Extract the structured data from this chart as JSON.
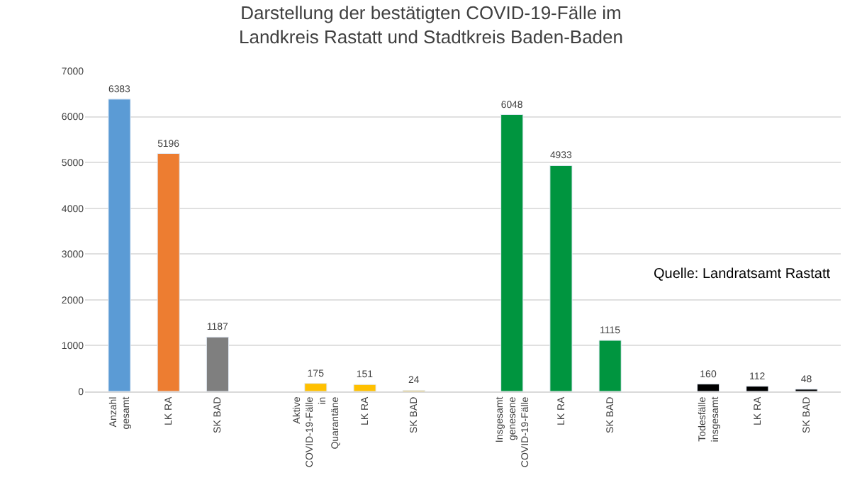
{
  "chart_data": {
    "type": "bar",
    "title": "Darstellung der bestätigten COVID-19-Fälle im Landkreis Rastatt und Stadtkreis Baden-Baden",
    "categories": [
      "Anzahl gesamt",
      "LK RA",
      "SK BAD",
      null,
      "Aktive COVID-19-Fälle in Quarantäne",
      "LK RA",
      "SK BAD",
      null,
      "Insgesamt genesene COVID-19-Fälle",
      "LK RA",
      "SK BAD",
      null,
      "Todesfälle insgesamt",
      "LK RA",
      "SK BAD"
    ],
    "values": [
      6383,
      5196,
      1187,
      null,
      175,
      151,
      24,
      null,
      6048,
      4933,
      1115,
      null,
      160,
      112,
      48
    ],
    "colors": [
      "#5b9bd5",
      "#ed7d31",
      "#7f7f7f",
      "#ffffff",
      "#ffc000",
      "#ffc000",
      "#ffc000",
      "#ffffff",
      "#00953f",
      "#00953f",
      "#00953f",
      "#ffffff",
      "#000000",
      "#000000",
      "#000000"
    ],
    "ylim": [
      0,
      7000
    ],
    "yticks": [
      0,
      1000,
      2000,
      3000,
      4000,
      5000,
      6000,
      7000
    ],
    "grid": "y",
    "data_labels": true,
    "annotations": [
      "Quelle: Landratsamt Rastatt"
    ]
  }
}
